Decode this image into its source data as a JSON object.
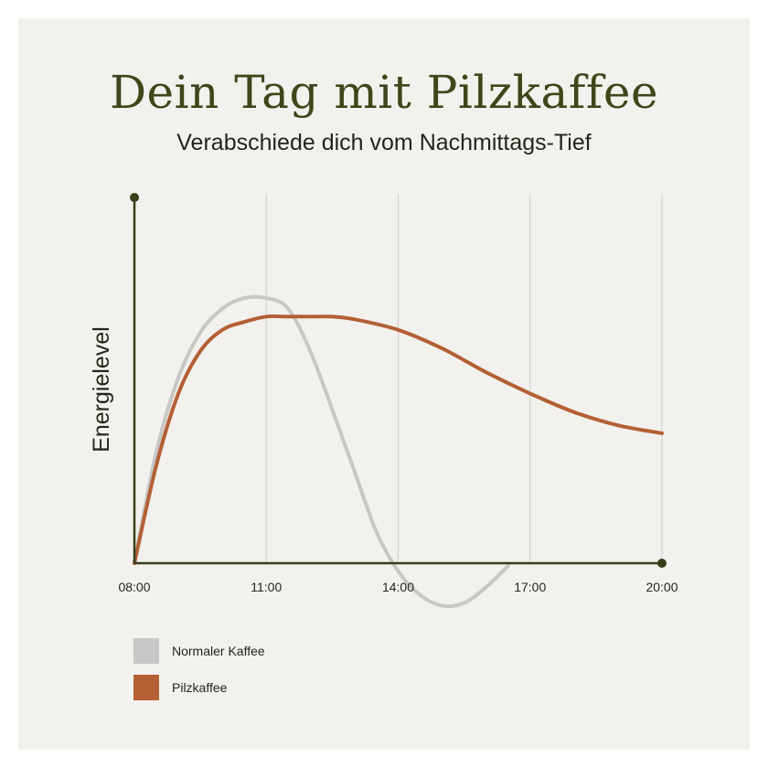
{
  "chart_data": {
    "type": "line",
    "title": "Dein Tag mit Pilzkaffee",
    "subtitle": "Verabschiede dich vom Nachmittags-Tief",
    "xlabel": "",
    "ylabel": "Energielevel",
    "x_ticks": [
      "08:00",
      "11:00",
      "14:00",
      "17:00",
      "20:00"
    ],
    "xlim": [
      8,
      20
    ],
    "ylim": [
      -0.15,
      1.2
    ],
    "grid": "vertical",
    "legend_position": "bottom-left",
    "series": [
      {
        "name": "Normaler Kaffee",
        "color": "#c7c7c5",
        "x": [
          8,
          8.5,
          9,
          9.5,
          10,
          10.5,
          11,
          11.5,
          12,
          12.5,
          13,
          13.5,
          14,
          14.5,
          15,
          15.5,
          16,
          16.5
        ],
        "y": [
          0,
          0.42,
          0.7,
          0.87,
          0.96,
          1.0,
          1.0,
          0.96,
          0.8,
          0.58,
          0.35,
          0.12,
          -0.03,
          -0.12,
          -0.16,
          -0.15,
          -0.09,
          -0.01
        ]
      },
      {
        "name": "Pilzkaffee",
        "color": "#b45f35",
        "x": [
          8,
          8.5,
          9,
          9.5,
          10,
          10.5,
          11,
          11.5,
          12,
          12.5,
          13,
          14,
          15,
          16,
          17,
          18,
          19,
          20
        ],
        "y": [
          0,
          0.37,
          0.64,
          0.8,
          0.88,
          0.91,
          0.93,
          0.93,
          0.93,
          0.93,
          0.92,
          0.88,
          0.81,
          0.72,
          0.64,
          0.57,
          0.52,
          0.49
        ]
      }
    ]
  },
  "colors": {
    "background": "#f3f1ed",
    "title": "#3d4719",
    "axis": "#363e1a",
    "grid": "#cfcdc7"
  }
}
